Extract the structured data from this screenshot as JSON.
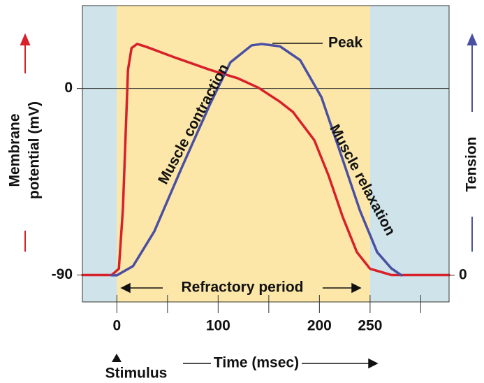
{
  "chart_data": {
    "type": "line",
    "x_label": "Time (msec)",
    "y_label": [
      "Membrane",
      "potential (mV)"
    ],
    "y2_label": "Tension",
    "xlim": [
      -34,
      328
    ],
    "xticks": [
      0,
      100,
      200,
      250
    ],
    "xminorticks": [
      50,
      150,
      300
    ],
    "ylim": [
      -103,
      40
    ],
    "yticks": [
      -90,
      0
    ],
    "y2lim": [
      -11.5,
      116.6
    ],
    "y2ticks": [
      0
    ],
    "zero_line": true,
    "background": "#cfe3ea",
    "shaded_regions": [
      {
        "from": 0,
        "to": 250,
        "color": "#fce7a8"
      }
    ],
    "annotations": {
      "peak": "Peak",
      "contraction": "Muscle contraction",
      "relaxation": "Muscle relaxation",
      "refractory": "Refractory period",
      "stimulus": "Stimulus"
    },
    "series": [
      {
        "name": "Membrane potential",
        "color": "#d8202a",
        "x": [
          -34,
          -5,
          2,
          6,
          11,
          14.5,
          20,
          29.7,
          57,
          92,
          119,
          140,
          161,
          174,
          195,
          209,
          223,
          237,
          250,
          271,
          328
        ],
        "values": [
          -90,
          -90,
          -87,
          -58,
          9,
          19.5,
          21.5,
          20,
          15,
          9,
          5,
          0.3,
          -6.4,
          -11.4,
          -25,
          -42,
          -62,
          -79,
          -87,
          -90,
          -90
        ]
      },
      {
        "name": "Tension",
        "color": "#4a4fa3",
        "axis": "y2",
        "x": [
          -5,
          0,
          16,
          37,
          64,
          92,
          112,
          133,
          143,
          161,
          181,
          202,
          223,
          240,
          257,
          271,
          281
        ],
        "values": [
          0,
          0,
          4,
          19,
          46.5,
          74,
          92,
          99.4,
          100,
          99,
          93,
          77,
          50,
          28,
          10,
          3,
          0
        ]
      }
    ]
  }
}
